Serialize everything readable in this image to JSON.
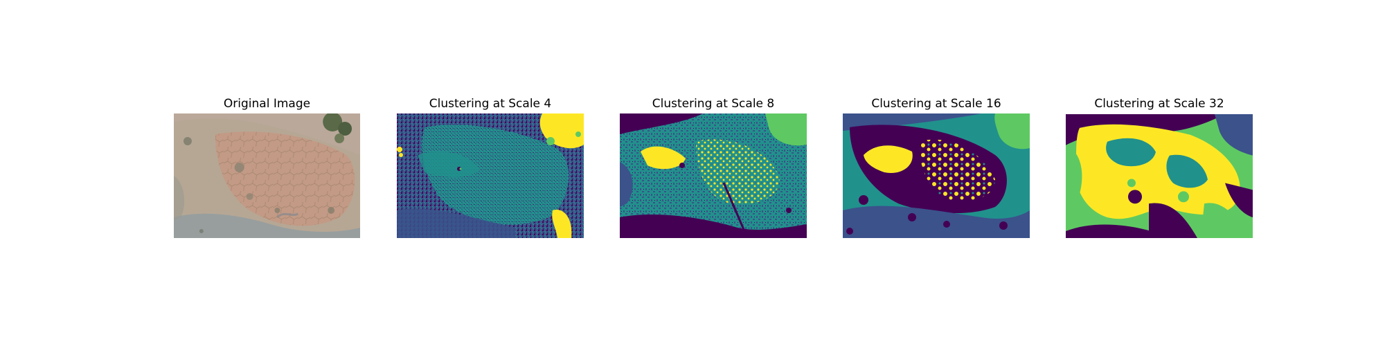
{
  "figure": {
    "panels": [
      {
        "title": "Original Image",
        "kind": "photo"
      },
      {
        "title": "Clustering at Scale 4",
        "kind": "cluster-map"
      },
      {
        "title": "Clustering at Scale 8",
        "kind": "cluster-map"
      },
      {
        "title": "Clustering at Scale 16",
        "kind": "cluster-map"
      },
      {
        "title": "Clustering at Scale 32",
        "kind": "cluster-map"
      }
    ]
  },
  "colors": {
    "viridis_purple": "#440154",
    "viridis_blue": "#3b528b",
    "viridis_teal": "#21918c",
    "viridis_green": "#5ec962",
    "viridis_yellow": "#fde725",
    "photo_soil": "#b6a795",
    "photo_crack": "#c29a85",
    "photo_shrub": "#5a6a48",
    "photo_water": "#8c9aa3"
  }
}
